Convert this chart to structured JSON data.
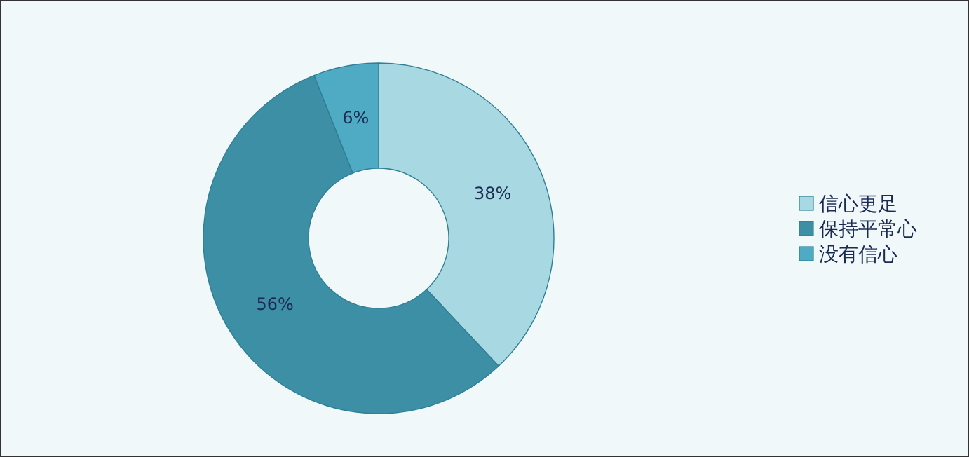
{
  "chart_data": {
    "type": "donut",
    "categories": [
      "信心更足",
      "保持平常心",
      "没有信心"
    ],
    "values": [
      38,
      56,
      6
    ],
    "colors": [
      "#a8d8e2",
      "#3d8fa5",
      "#4faac4"
    ],
    "value_labels": [
      "38%",
      "56%",
      "6%"
    ],
    "data_labels": true,
    "legend": "right"
  }
}
